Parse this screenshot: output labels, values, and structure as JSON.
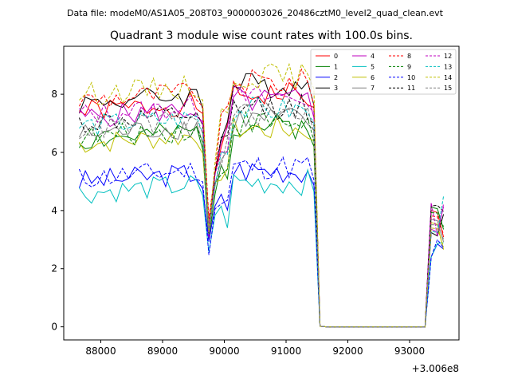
{
  "page": {
    "suptitle": "Data file: modeM0/AS1A05_208T03_9000003026_20486cztM0_level2_quad_clean.evt"
  },
  "chart_data": {
    "type": "line",
    "title": "Quadrant 3 module wise count rates with 100.0s bins.",
    "xlabel": "",
    "ylabel": "",
    "x_offset_label": "+3.006e8",
    "xlim": [
      87400,
      93800
    ],
    "ylim": [
      -0.45,
      9.65
    ],
    "xticks": [
      88000,
      89000,
      90000,
      91000,
      92000,
      93000
    ],
    "xtick_labels": [
      "88000",
      "89000",
      "90000",
      "91000",
      "92000",
      "93000"
    ],
    "yticks": [
      0,
      2,
      4,
      6,
      8
    ],
    "ytick_labels": [
      "0",
      "2",
      "4",
      "6",
      "8"
    ],
    "grid": false,
    "legend": {
      "placement": "top-right",
      "columns": 4
    },
    "x": {
      "bin_width": 100,
      "segments": [
        {
          "start": 87650,
          "end": 91550
        },
        {
          "start": 91650,
          "end": 93250
        },
        {
          "start": 93350,
          "end": 93550
        }
      ]
    },
    "series": [
      {
        "name": "0",
        "color": "#ff0000",
        "dash": "solid",
        "level": 7.4,
        "seed": 1
      },
      {
        "name": "1",
        "color": "#008000",
        "dash": "solid",
        "level": 6.4,
        "seed": 2
      },
      {
        "name": "2",
        "color": "#0000ff",
        "dash": "solid",
        "level": 5.0,
        "seed": 3
      },
      {
        "name": "3",
        "color": "#000000",
        "dash": "solid",
        "level": 7.7,
        "seed": 4
      },
      {
        "name": "4",
        "color": "#bf00bf",
        "dash": "solid",
        "level": 7.2,
        "seed": 5
      },
      {
        "name": "5",
        "color": "#00bfbf",
        "dash": "solid",
        "level": 4.6,
        "seed": 6
      },
      {
        "name": "6",
        "color": "#bfbf00",
        "dash": "solid",
        "level": 6.3,
        "seed": 7
      },
      {
        "name": "7",
        "color": "#808080",
        "dash": "solid",
        "level": 6.6,
        "seed": 8
      },
      {
        "name": "8",
        "color": "#ff0000",
        "dash": "dashed",
        "level": 7.8,
        "seed": 9
      },
      {
        "name": "9",
        "color": "#008000",
        "dash": "dashed",
        "level": 6.5,
        "seed": 10
      },
      {
        "name": "10",
        "color": "#0000ff",
        "dash": "dashed",
        "level": 5.1,
        "seed": 11
      },
      {
        "name": "11",
        "color": "#000000",
        "dash": "dashed",
        "level": 7.0,
        "seed": 12
      },
      {
        "name": "12",
        "color": "#bf00bf",
        "dash": "dashed",
        "level": 7.3,
        "seed": 13
      },
      {
        "name": "13",
        "color": "#00bfbf",
        "dash": "dashed",
        "level": 6.9,
        "seed": 14
      },
      {
        "name": "14",
        "color": "#bfbf00",
        "dash": "dashed",
        "level": 8.0,
        "seed": 15
      },
      {
        "name": "15",
        "color": "#808080",
        "dash": "dashed",
        "level": 6.8,
        "seed": 16
      }
    ]
  }
}
